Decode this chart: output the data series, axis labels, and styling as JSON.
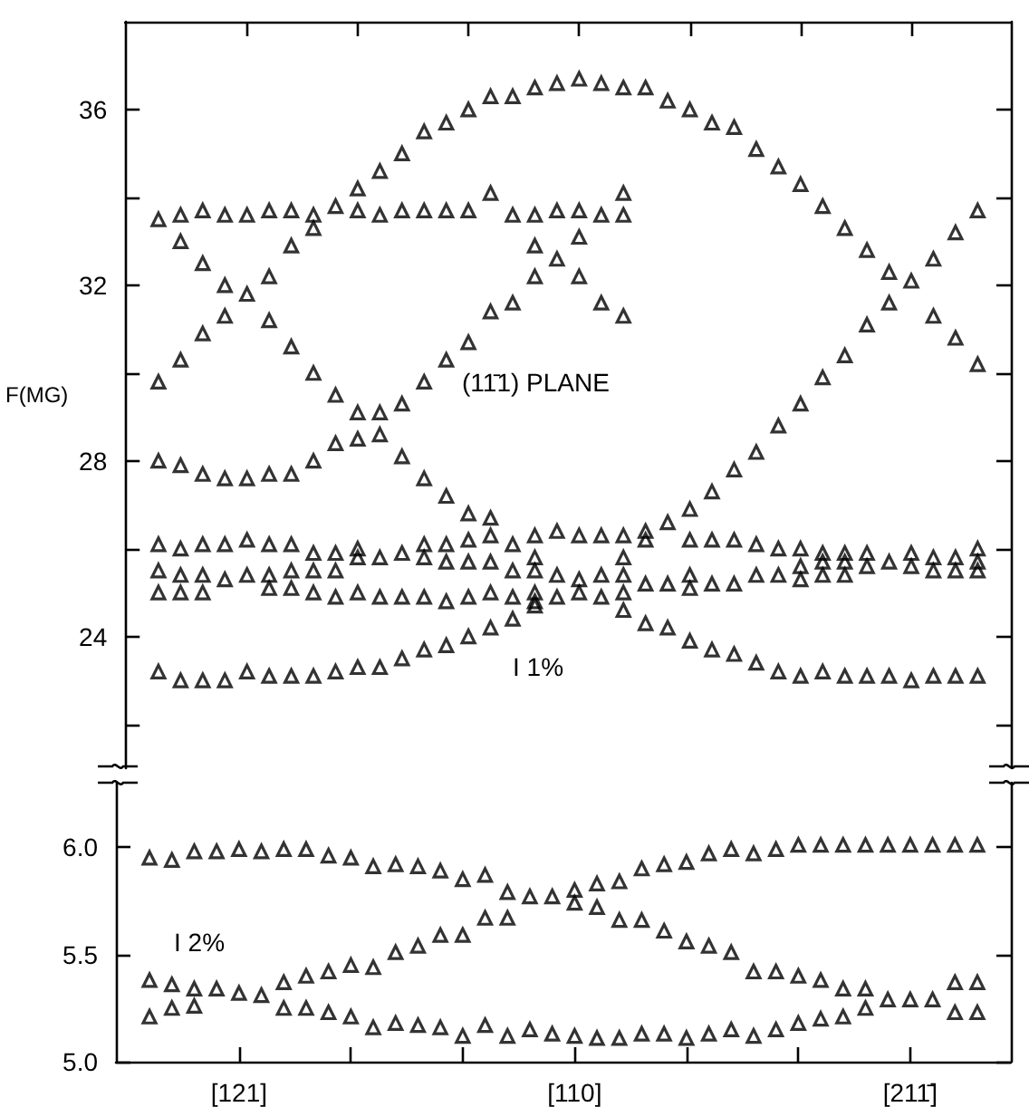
{
  "chart_data": [
    {
      "type": "scatter",
      "ylabel": "F(MG)",
      "categories": [
        null,
        null,
        null,
        null,
        null,
        null,
        null,
        null,
        null,
        null,
        null,
        null,
        null,
        null,
        null,
        null,
        null,
        null,
        null,
        null,
        null,
        null,
        null,
        null,
        null,
        null,
        null,
        null,
        null,
        null,
        null,
        null,
        null,
        null,
        null,
        null,
        null,
        null,
        null,
        null
      ],
      "ylim": [
        21,
        38
      ],
      "yticks": [
        {
          "value": 22,
          "label": null
        },
        24,
        {
          "value": 26,
          "label": null
        },
        28,
        {
          "value": 30,
          "label": null
        },
        32,
        {
          "value": 34,
          "label": null
        },
        36
      ],
      "marker": "triangle",
      "annotations": [
        "(11̄1) PLANE",
        "I 1%"
      ],
      "series": [
        {
          "color": "#000000",
          "values": [
            null,
            33.5,
            33.6,
            33.7,
            33.6,
            33.6,
            33.7,
            33.7,
            33.6,
            33.8,
            34.2,
            34.6,
            35.0,
            35.5,
            35.7,
            36.0,
            36.3,
            36.3,
            36.5,
            36.6,
            36.7,
            36.6,
            36.5,
            36.5,
            36.2,
            36.0,
            35.7,
            35.6,
            35.1,
            34.7,
            34.3,
            33.8,
            33.3,
            32.8,
            32.3,
            32.1,
            32.6,
            33.2,
            33.7,
            null
          ]
        },
        {
          "color": "#000000",
          "values": [
            null,
            29.8,
            33.0,
            32.5,
            32.0,
            31.8,
            32.2,
            32.9,
            33.3,
            29.5,
            33.7,
            33.6,
            33.7,
            33.7,
            33.7,
            33.7,
            34.1,
            33.6,
            33.6,
            33.7,
            33.7,
            33.6,
            34.1,
            26.4,
            26.6,
            26.9,
            27.3,
            27.8,
            28.2,
            28.8,
            29.3,
            29.9,
            30.4,
            31.1,
            31.6,
            25.9,
            31.3,
            30.8,
            30.2,
            null
          ]
        },
        {
          "color": "#000000",
          "values": [
            null,
            28.0,
            30.3,
            30.9,
            31.3,
            27.6,
            31.2,
            30.6,
            30.0,
            28.4,
            29.1,
            29.1,
            29.3,
            29.8,
            30.3,
            30.7,
            31.4,
            31.6,
            32.9,
            32.6,
            33.1,
            31.6,
            33.6,
            26.2,
            25.2,
            26.2,
            26.2,
            26.2,
            26.1,
            26.0,
            26.0,
            25.9,
            25.9,
            25.9,
            25.7,
            25.6,
            25.8,
            25.8,
            26.0,
            null
          ]
        },
        {
          "color": "#000000",
          "values": [
            null,
            26.1,
            27.9,
            27.7,
            27.6,
            26.2,
            27.7,
            27.7,
            28.0,
            25.9,
            28.5,
            28.6,
            28.1,
            27.6,
            27.2,
            26.8,
            26.7,
            26.1,
            32.2,
            26.4,
            32.2,
            26.3,
            31.3,
            25.2,
            24.2,
            25.4,
            25.2,
            25.2,
            25.4,
            25.4,
            25.6,
            25.7,
            25.7,
            25.6,
            23.1,
            23.0,
            25.5,
            25.5,
            25.7,
            null
          ]
        },
        {
          "color": "#000000",
          "values": [
            null,
            25.5,
            26.0,
            26.1,
            26.1,
            25.4,
            26.1,
            26.1,
            25.9,
            25.5,
            26.0,
            25.8,
            25.9,
            26.1,
            26.1,
            26.2,
            26.3,
            25.5,
            26.3,
            25.4,
            26.3,
            25.4,
            26.3,
            24.3,
            null,
            25.1,
            23.7,
            23.6,
            23.4,
            23.2,
            25.3,
            25.4,
            25.4,
            23.1,
            null,
            null,
            23.1,
            23.1,
            25.5,
            null
          ]
        },
        {
          "color": "#000000",
          "values": [
            null,
            25.0,
            25.4,
            25.4,
            25.3,
            23.2,
            25.4,
            25.5,
            25.5,
            24.9,
            25.8,
            24.9,
            24.9,
            25.8,
            25.7,
            25.7,
            25.7,
            24.9,
            25.8,
            24.9,
            25.3,
            24.9,
            25.8,
            null,
            null,
            23.9,
            null,
            null,
            null,
            null,
            23.1,
            23.2,
            23.1,
            null,
            null,
            null,
            null,
            null,
            23.1,
            null
          ]
        },
        {
          "color": "#000000",
          "values": [
            null,
            23.2,
            25.0,
            25.0,
            23.0,
            null,
            25.1,
            25.1,
            25.0,
            23.2,
            25.0,
            23.3,
            23.5,
            24.9,
            24.8,
            24.9,
            25.0,
            24.4,
            25.5,
            null,
            25.0,
            null,
            25.4,
            null,
            null,
            null,
            null,
            null,
            null,
            null,
            null,
            null,
            null,
            null,
            null,
            null,
            null,
            null,
            null,
            null
          ]
        },
        {
          "color": "#000000",
          "values": [
            null,
            null,
            23.0,
            23.0,
            null,
            null,
            23.1,
            23.1,
            23.1,
            null,
            23.3,
            null,
            null,
            23.7,
            23.8,
            24.0,
            24.2,
            null,
            25.0,
            null,
            null,
            null,
            25.0,
            null,
            null,
            null,
            null,
            null,
            null,
            null,
            null,
            null,
            null,
            null,
            null,
            null,
            null,
            null,
            null,
            null
          ]
        },
        {
          "color": "#000000",
          "values": [
            null,
            null,
            null,
            null,
            null,
            null,
            null,
            null,
            null,
            null,
            null,
            null,
            null,
            null,
            null,
            null,
            null,
            null,
            24.8,
            null,
            null,
            null,
            24.6,
            null,
            null,
            null,
            null,
            null,
            null,
            null,
            null,
            null,
            null,
            null,
            null,
            null,
            null,
            null,
            null,
            null
          ]
        },
        {
          "color": "#000000",
          "values": [
            null,
            null,
            null,
            null,
            null,
            null,
            null,
            null,
            null,
            null,
            null,
            null,
            null,
            null,
            null,
            null,
            null,
            null,
            24.7,
            null,
            null,
            null,
            null,
            null,
            null,
            null,
            null,
            null,
            null,
            null,
            null,
            null,
            null,
            null,
            null,
            null,
            null,
            null,
            null,
            null
          ]
        }
      ]
    },
    {
      "type": "scatter",
      "categories": [
        null,
        null,
        null,
        null,
        null,
        "[121]",
        null,
        null,
        null,
        null,
        null,
        null,
        null,
        null,
        null,
        null,
        null,
        null,
        null,
        null,
        "[110]",
        null,
        null,
        null,
        null,
        null,
        null,
        null,
        null,
        null,
        null,
        null,
        null,
        null,
        null,
        "[211̄]",
        null,
        null,
        null,
        null
      ],
      "ylim": [
        5.0,
        6.3
      ],
      "yticks": [
        {
          "value": 5,
          "label": "5.0"
        },
        {
          "value": 5.5,
          "label": "5.5"
        },
        {
          "value": 6,
          "label": "6.0"
        }
      ],
      "marker": "triangle",
      "annotations": [
        "I 2%"
      ],
      "series": [
        {
          "color": "#000000",
          "values": [
            null,
            5.95,
            5.94,
            5.98,
            5.98,
            5.99,
            5.98,
            5.99,
            5.99,
            5.96,
            5.95,
            5.91,
            5.92,
            5.91,
            5.89,
            5.85,
            5.87,
            5.79,
            5.77,
            5.77,
            5.8,
            5.83,
            5.84,
            5.9,
            5.92,
            5.93,
            5.97,
            5.99,
            5.97,
            5.99,
            6.01,
            6.01,
            6.01,
            6.01,
            6.01,
            6.01,
            6.01,
            6.01,
            6.01,
            null
          ]
        },
        {
          "color": "#000000",
          "values": [
            null,
            5.38,
            5.36,
            5.34,
            5.34,
            5.32,
            5.31,
            5.37,
            5.4,
            5.42,
            5.45,
            5.44,
            5.51,
            5.54,
            5.59,
            5.59,
            5.67,
            5.67,
            5.15,
            5.13,
            5.74,
            5.72,
            5.66,
            5.66,
            5.61,
            5.56,
            5.54,
            5.51,
            5.42,
            5.42,
            5.4,
            5.38,
            5.34,
            5.34,
            5.29,
            5.29,
            5.29,
            5.37,
            5.37,
            null
          ]
        },
        {
          "color": "#000000",
          "values": [
            null,
            5.21,
            5.25,
            5.26,
            null,
            null,
            null,
            5.25,
            5.25,
            5.23,
            5.21,
            5.16,
            5.18,
            5.17,
            5.16,
            5.12,
            5.17,
            5.12,
            null,
            null,
            5.12,
            5.11,
            5.11,
            5.13,
            5.13,
            5.11,
            5.13,
            5.15,
            5.12,
            5.15,
            5.18,
            5.2,
            5.21,
            5.25,
            null,
            null,
            null,
            5.23,
            5.23,
            null
          ]
        }
      ]
    }
  ]
}
